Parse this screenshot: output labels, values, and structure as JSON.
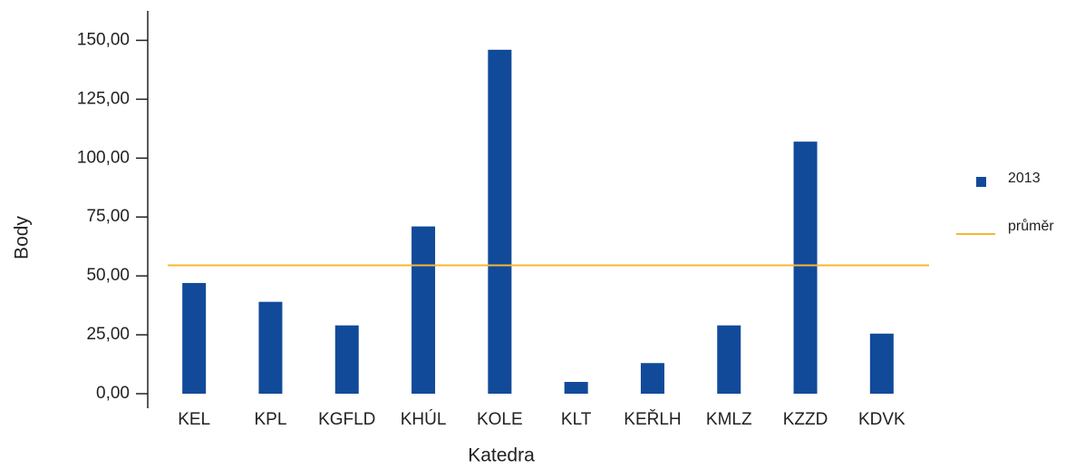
{
  "chart_data": {
    "type": "bar",
    "x_label": "Katedra",
    "y_label": "Body",
    "categories": [
      "KEL",
      "KPL",
      "KGFLD",
      "KHÚL",
      "KOLE",
      "KLT",
      "KEŘLH",
      "KMLZ",
      "KZZD",
      "KDVK"
    ],
    "series": [
      {
        "name": "2013",
        "type": "bar",
        "color": "#124a9a",
        "values": [
          47,
          39,
          29,
          71,
          146,
          5,
          13,
          29,
          107,
          25.5
        ]
      },
      {
        "name": "průměr",
        "type": "line",
        "color": "#f5b731",
        "values": [
          54.5,
          54.5,
          54.5,
          54.5,
          54.5,
          54.5,
          54.5,
          54.5,
          54.5,
          54.5
        ]
      }
    ],
    "ylim": [
      0,
      162.5
    ],
    "yticks": [
      {
        "value": 0,
        "label": "0,00"
      },
      {
        "value": 25,
        "label": "25,00"
      },
      {
        "value": 50,
        "label": "50,00"
      },
      {
        "value": 75,
        "label": "75,00"
      },
      {
        "value": 100,
        "label": "100,00"
      },
      {
        "value": 125,
        "label": "125,00"
      },
      {
        "value": 150,
        "label": "150,00"
      }
    ],
    "grid": false,
    "legend": "right"
  }
}
